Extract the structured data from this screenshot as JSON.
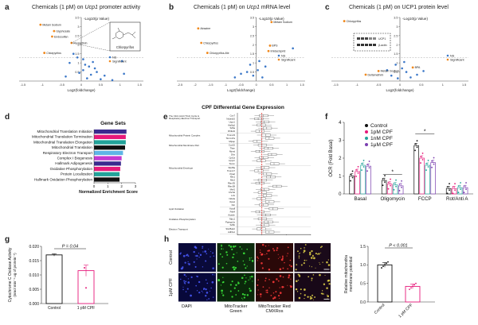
{
  "panels": {
    "a": {
      "letter": "a",
      "title_pre": "Chemicals (1 pM) on ",
      "title_gene": "Ucp1",
      "title_post": " promoter activity",
      "ylabel": "-Log10(p Value)",
      "xlabel": "Log2(foldchange)",
      "xticks": [
        "-1.5",
        "-1",
        "-0.5",
        "0",
        "0.5",
        "1",
        "1.5"
      ],
      "yticks": [
        "0.5",
        "1",
        "1.5",
        "2",
        "2.5",
        "3",
        "3.5"
      ],
      "legend": [
        "NS",
        "Significant"
      ],
      "inset_label": "Chlorpyrifos",
      "points_sig": [
        {
          "x": -1.05,
          "y": 3.1,
          "label": "Metam Sodium"
        },
        {
          "x": -0.7,
          "y": 2.75,
          "label": "Glyphosate"
        },
        {
          "x": -0.75,
          "y": 2.45,
          "label": "Endosulfan"
        },
        {
          "x": -0.25,
          "y": 2.1,
          "label": "Permethrin"
        },
        {
          "x": -0.95,
          "y": 1.55,
          "label": "Chlorpyrifos"
        }
      ],
      "points_ns": [
        {
          "x": -0.2,
          "y": 1.5
        },
        {
          "x": -0.1,
          "y": 1.3
        },
        {
          "x": 0.05,
          "y": 1.2
        },
        {
          "x": -0.3,
          "y": 1.0
        },
        {
          "x": 0.1,
          "y": 0.9
        },
        {
          "x": 0.2,
          "y": 0.8
        },
        {
          "x": 0.35,
          "y": 0.7
        },
        {
          "x": 0.05,
          "y": 0.6
        },
        {
          "x": 0.4,
          "y": 0.5
        },
        {
          "x": 0.25,
          "y": 0.35
        },
        {
          "x": -0.4,
          "y": 0.25
        },
        {
          "x": 0.6,
          "y": 0.3
        },
        {
          "x": 0.15,
          "y": 0.15
        },
        {
          "x": 0.5,
          "y": 0.1
        },
        {
          "x": 0.8,
          "y": 0.05
        },
        {
          "x": 1.05,
          "y": 1.1
        },
        {
          "x": 1.1,
          "y": 0.4
        },
        {
          "x": 0.3,
          "y": 1.05
        },
        {
          "x": -0.05,
          "y": 0.45
        }
      ]
    },
    "b": {
      "letter": "b",
      "title_pre": "Chemicals (1 pM) on ",
      "title_gene": "Ucp1",
      "title_post": " mRNA level",
      "ylabel": "-Log10(p Value)",
      "xlabel": "Log2(foldchange)",
      "xticks": [
        "-2.5",
        "-2",
        "-1.5",
        "-1",
        "-0.5",
        "0",
        "0.5",
        "1",
        "1.5"
      ],
      "yticks": [
        "0.5",
        "1",
        "1.5",
        "2",
        "2.5",
        "3",
        "3.5"
      ],
      "legend": [
        "NS",
        "Significant"
      ],
      "points_sig": [
        {
          "x": -1.9,
          "y": 2.9,
          "label": "Atrazine"
        },
        {
          "x": 0.5,
          "y": 3.25,
          "label": "Metam Sodium"
        },
        {
          "x": -1.8,
          "y": 2.1,
          "label": "Chlorpyrifos"
        },
        {
          "x": -1.6,
          "y": 1.55,
          "label": "Chlorpyrifos-Me"
        },
        {
          "x": 0.45,
          "y": 1.95,
          "label": "BPS"
        },
        {
          "x": 0.4,
          "y": 1.65,
          "label": "Imidacloprid"
        }
      ],
      "points_ns": [
        {
          "x": -0.3,
          "y": 0.5
        },
        {
          "x": -0.1,
          "y": 0.3
        },
        {
          "x": 0.05,
          "y": 0.6
        },
        {
          "x": 0.2,
          "y": 0.2
        },
        {
          "x": -0.5,
          "y": 0.4
        },
        {
          "x": 0.3,
          "y": 0.8
        },
        {
          "x": -0.2,
          "y": 0.9
        },
        {
          "x": 0.1,
          "y": 1.1
        },
        {
          "x": 1.2,
          "y": 1.8
        },
        {
          "x": -0.7,
          "y": 0.2
        }
      ]
    },
    "c": {
      "letter": "c",
      "title": "Chemicals (1 pM) on UCP1 protein level",
      "ylabel": "-Log10(p Value)",
      "xlabel": "Log2(foldchange)",
      "xticks": [
        "-1.5",
        "-1",
        "-0.5",
        "0",
        "0.5",
        "1",
        "1.5"
      ],
      "yticks": [
        "0.5",
        "1",
        "1.5",
        "2",
        "2.5",
        "3",
        "3.5"
      ],
      "legend": [
        "NS",
        "Significant"
      ],
      "inset_lines": [
        "UCP1",
        "β-actin"
      ],
      "points_sig": [
        {
          "x": -1.3,
          "y": 3.3,
          "label": "Chlorpyrifos"
        },
        {
          "x": 0.3,
          "y": 0.75,
          "label": "BPA"
        },
        {
          "x": -0.5,
          "y": 0.55,
          "label": "Metam Sodium"
        },
        {
          "x": -0.8,
          "y": 0.35,
          "label": "Deltamethrin"
        }
      ],
      "points_ns": [
        {
          "x": -0.1,
          "y": 0.9
        },
        {
          "x": 0.05,
          "y": 0.7
        },
        {
          "x": 0.15,
          "y": 0.5
        },
        {
          "x": -0.2,
          "y": 0.3
        },
        {
          "x": 0.25,
          "y": 0.2
        },
        {
          "x": 0.4,
          "y": 0.35
        },
        {
          "x": -0.05,
          "y": 0.15
        },
        {
          "x": 0.1,
          "y": 1.05
        },
        {
          "x": 0.55,
          "y": 0.55
        },
        {
          "x": -0.3,
          "y": 0.6
        }
      ]
    },
    "d": {
      "letter": "d",
      "title": "Gene Sets",
      "xlabel": "Normalized Enrichment Score",
      "xticks": [
        "0",
        "1",
        "2",
        "3"
      ],
      "chart_data": {
        "type": "bar",
        "categories": [
          "Mitochondrial Translation Initiation",
          "Mitochondrial Translation Termination",
          "Mitochondrial Translation Elongation",
          "Mitochondrial Translation",
          "Respiratory Electron Transport",
          "Complex I Biogenesis",
          "Hallmark Adipogenesis",
          "Oxidative Phosphorylation",
          "Protein Localization",
          "Hallmark Oxidation Phosphorylation"
        ],
        "values": [
          2.35,
          2.3,
          2.3,
          2.25,
          2.1,
          2.0,
          1.95,
          1.9,
          1.85,
          1.85
        ],
        "colors": [
          "#3b2a8f",
          "#e6197a",
          "#22a39a",
          "#111111",
          "#5fb5e6",
          "#c43ad1",
          "#3b2a8f",
          "#e6197a",
          "#22a39a",
          "#111111"
        ],
        "xlim": [
          0,
          3
        ]
      }
    },
    "e": {
      "letter": "e",
      "title": "CPF Differential  Gene Expression",
      "xlabel": "Relative Expression",
      "xticks": [
        "0",
        "1",
        "2",
        "3"
      ],
      "groups": [
        {
          "name": "The Citric Acid (TCA) Cycle & Respiratory Electron Transport",
          "genes": [
            "Cox7",
            "Ndufa10",
            "Uqcr1",
            "Atp5g1",
            "Sdha",
            "Dhtkd1"
          ]
        },
        {
          "name": "Mitochondrial Protein Complex",
          "genes": [
            "Timm23",
            "Timm17a",
            "Mipep"
          ]
        },
        {
          "name": "Mitochondrial Membrane Part",
          "genes": [
            "Cox15",
            "Tfam",
            "Mpnd",
            "Dhx",
            "Cpt1a",
            "Lrpprc",
            "Tomm"
          ]
        },
        {
          "name": "Mitochondrial Envelope",
          "genes": [
            "Slc25a",
            "Timm17",
            "Ppa2",
            "Mtx1",
            "Mtx2",
            "Rbm35",
            "Rbm38",
            "Mtrf1",
            "Chchd",
            "Lrrk",
            "Ndufa",
            "Opa1",
            "Nnt"
          ]
        },
        {
          "name": "Lipid Oxidation",
          "genes": [
            "Acadl",
            "Pdk4",
            "Acadm"
          ]
        },
        {
          "name": "Oxidative Phosphorylation",
          "genes": [
            "Mpc1",
            "Ppargc1a",
            "Sdhb"
          ]
        },
        {
          "name": "Electron Transport",
          "genes": [
            "Slc25a12",
            "Adhfe1"
          ]
        }
      ]
    },
    "f": {
      "letter": "f",
      "ylabel": "OCR (Fold Basal)",
      "yticks": [
        "0",
        "1",
        "2",
        "3",
        "4"
      ],
      "legend": [
        "Control",
        "1pM CPF",
        "1nM CPF",
        "1μM CPF"
      ],
      "series_colors": [
        "#111111",
        "#e6197a",
        "#22a39a",
        "#7b3fb0"
      ],
      "categories": [
        "Basal",
        "Oligomycin",
        "FCCP",
        "Rot/Anti A"
      ],
      "star_oligo": "*",
      "star_fccp": "*",
      "chart_data": {
        "type": "bar",
        "categories": [
          "Basal",
          "Oligomycin",
          "FCCP",
          "Rot/Anti A"
        ],
        "series": [
          {
            "name": "Control",
            "values": [
              1.0,
              0.75,
              2.7,
              0.3
            ]
          },
          {
            "name": "1pM CPF",
            "values": [
              1.25,
              0.55,
              2.0,
              0.3
            ]
          },
          {
            "name": "1nM CPF",
            "values": [
              1.6,
              0.5,
              1.6,
              0.35
            ]
          },
          {
            "name": "1μM CPF",
            "values": [
              1.55,
              0.45,
              1.75,
              0.35
            ]
          }
        ],
        "ylim": [
          0,
          4
        ]
      }
    },
    "g": {
      "letter": "g",
      "ylabel_1": "Cytochrome C Oxidase Activity",
      "ylabel_2": "(nmol min⁻¹ ug of protein⁻¹)",
      "yticks": [
        "0.000",
        "0.005",
        "0.010",
        "0.015",
        "0.020"
      ],
      "pvalue": "P = 0.04",
      "chart_data": {
        "type": "bar",
        "categories": [
          "Control",
          "1 pM CPF"
        ],
        "values": [
          0.017,
          0.0115
        ],
        "ylim": [
          0,
          0.02
        ]
      }
    },
    "h": {
      "letter": "h",
      "rows": [
        "Control",
        "1pM CPF"
      ],
      "cols": [
        "DAPI",
        "MitoTracker Green",
        "MitoTracker Red CMXRos",
        "Merge"
      ],
      "col_label_1": "DAPI",
      "col_label_2a": "MitoTracker",
      "col_label_2b": "Green",
      "col_label_3a": "MitoTracker Red",
      "col_label_3b": "CMXRos",
      "ylabel_1": "Relative mitochondria",
      "ylabel_2": "membrane potential",
      "yticks": [
        "0.0",
        "0.5",
        "1.0",
        "1.5"
      ],
      "pvalue": "P < 0.001",
      "chart_data": {
        "type": "bar",
        "categories": [
          "Control",
          "1 pM CPF"
        ],
        "values": [
          1.0,
          0.42
        ],
        "ylim": [
          0,
          1.5
        ]
      }
    }
  }
}
